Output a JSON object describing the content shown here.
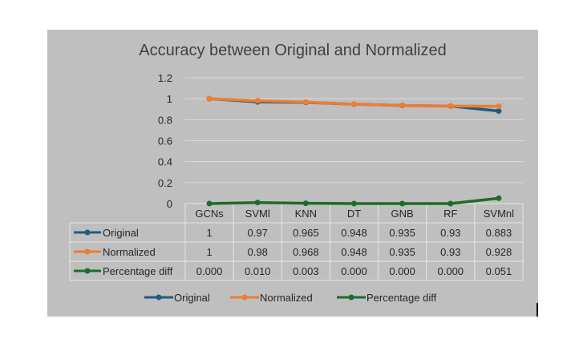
{
  "chart_data": {
    "type": "line",
    "title": "Accuracy between Original and Normalized",
    "categories": [
      "GCNs",
      "SVMl",
      "KNN",
      "DT",
      "GNB",
      "RF",
      "SVMnl"
    ],
    "y_ticks": [
      "0",
      "0.2",
      "0.4",
      "0.6",
      "0.8",
      "1",
      "1.2"
    ],
    "ylim": [
      0,
      1.2
    ],
    "grid": true,
    "legend_position": "bottom",
    "series": [
      {
        "name": "Original",
        "color": "#1f5c7e",
        "values": [
          1,
          0.97,
          0.965,
          0.948,
          0.935,
          0.93,
          0.883
        ],
        "table_values": [
          "1",
          "0.97",
          "0.965",
          "0.948",
          "0.935",
          "0.93",
          "0.883"
        ]
      },
      {
        "name": "Normalized",
        "color": "#ed7d31",
        "values": [
          1,
          0.98,
          0.968,
          0.948,
          0.935,
          0.93,
          0.928
        ],
        "table_values": [
          "1",
          "0.98",
          "0.968",
          "0.948",
          "0.935",
          "0.93",
          "0.928"
        ]
      },
      {
        "name": "Percentage diff",
        "color": "#1e6b2a",
        "values": [
          0.0,
          0.01,
          0.003,
          0.0,
          0.0,
          0.0,
          0.051
        ],
        "table_values": [
          "0.000",
          "0.010",
          "0.003",
          "0.000",
          "0.000",
          "0.000",
          "0.051"
        ]
      }
    ]
  }
}
